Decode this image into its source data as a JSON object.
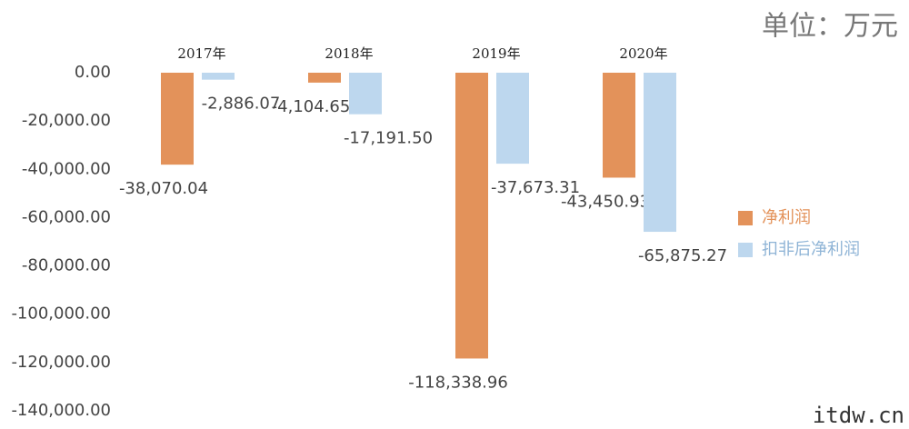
{
  "chart_data": {
    "type": "bar",
    "unit_note": "单位：万元",
    "watermark": "itdw.cn",
    "categories": [
      "2017年",
      "2018年",
      "2019年",
      "2020年"
    ],
    "series": [
      {
        "name": "净利润",
        "color": "#e3925a",
        "values": [
          -38070.04,
          -4104.65,
          -118338.96,
          -43450.93
        ],
        "value_labels": [
          "-38,070.04",
          "-4,104.65",
          "-118,338.96",
          "-43,450.93"
        ]
      },
      {
        "name": "扣非后净利润",
        "color": "#bdd7ee",
        "values": [
          -2886.07,
          -17191.5,
          -37673.31,
          -65875.27
        ],
        "value_labels": [
          "-2,886.07",
          "-17,191.50",
          "-37,673.31",
          "-65,875.27"
        ]
      }
    ],
    "ylim": [
      -140000,
      0
    ],
    "yticks": [
      {
        "value": 0,
        "label": "0.00"
      },
      {
        "value": -20000,
        "label": "-20,000.00"
      },
      {
        "value": -40000,
        "label": "-40,000.00"
      },
      {
        "value": -60000,
        "label": "-60,000.00"
      },
      {
        "value": -80000,
        "label": "-80,000.00"
      },
      {
        "value": -100000,
        "label": "-100,000.00"
      },
      {
        "value": -120000,
        "label": "-120,000.00"
      },
      {
        "value": -140000,
        "label": "-140,000.00"
      }
    ],
    "grid": false
  }
}
